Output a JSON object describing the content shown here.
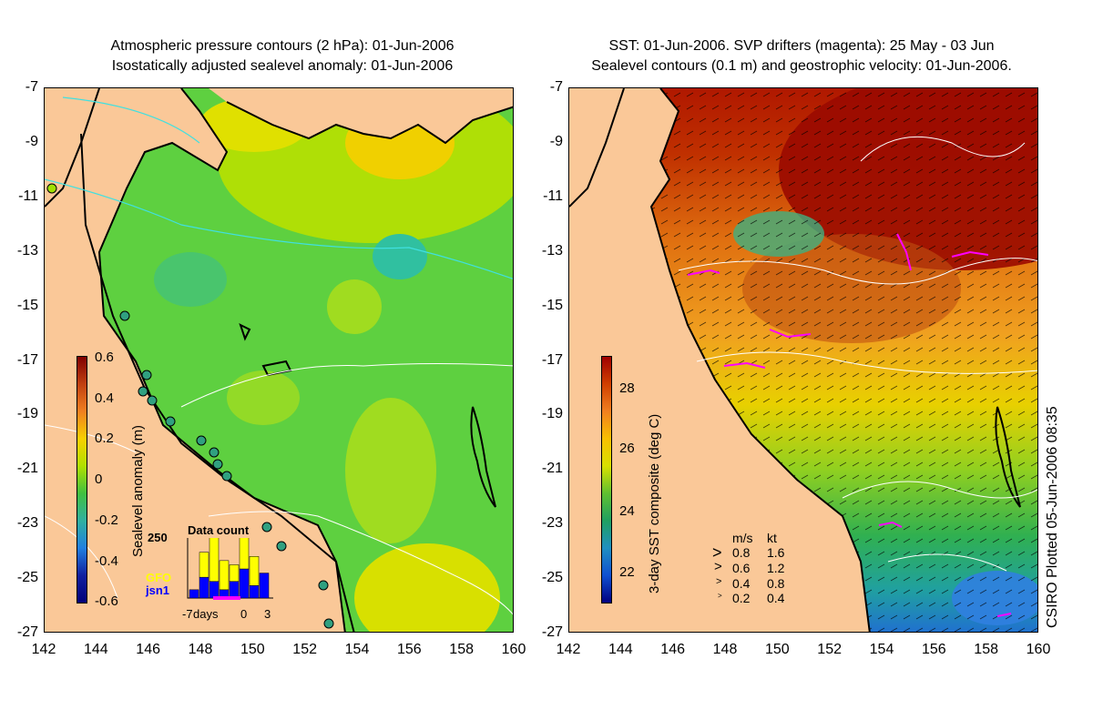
{
  "left_panel": {
    "title_line1": "Atmospheric pressure contours (2 hPa): 01-Jun-2006",
    "title_line2": "Isostatically adjusted sealevel anomaly: 01-Jun-2006",
    "colorbar": {
      "label": "Sealevel anomaly (m)",
      "ticks": [
        "0.6",
        "0.4",
        "0.2",
        "0",
        "-0.2",
        "-0.4",
        "-0.6"
      ],
      "colors": [
        "#800000",
        "#c04010",
        "#f08020",
        "#f8d000",
        "#b0e000",
        "#40c040",
        "#30b0a0",
        "#2080e0",
        "#1020a0",
        "#00007a"
      ]
    },
    "inset": {
      "title": "Data count",
      "ymax_label": "250",
      "series": [
        {
          "name": "GFO",
          "color": "#ffff00"
        },
        {
          "name": "jsn1",
          "color": "#0000ff"
        }
      ],
      "xlabel": "days",
      "xticks": [
        "-7",
        "0",
        "3"
      ],
      "yellow_values": [
        0,
        60,
        120,
        70,
        40,
        110,
        70,
        0
      ],
      "blue_values": [
        20,
        50,
        40,
        20,
        40,
        70,
        30,
        60
      ]
    }
  },
  "right_panel": {
    "title_line1": "SST: 01-Jun-2006. SVP drifters (magenta): 25 May - 03 Jun",
    "title_line2": "Sealevel contours (0.1 m) and geostrophic velocity: 01-Jun-2006.",
    "colorbar": {
      "label": "3-day SST composite (deg C)",
      "ticks": [
        "28",
        "26",
        "24",
        "22"
      ],
      "colors": [
        "#a00000",
        "#d04000",
        "#f08020",
        "#f8c000",
        "#d8e000",
        "#60c030",
        "#20a060",
        "#2090c0",
        "#1050d0",
        "#000080"
      ]
    },
    "speed_legend": {
      "header_ms": "m/s",
      "header_kt": "kt",
      "rows": [
        {
          "ms": "0.8",
          "kt": "1.6"
        },
        {
          "ms": "0.6",
          "kt": "1.2"
        },
        {
          "ms": "0.4",
          "kt": "0.8"
        },
        {
          "ms": "0.2",
          "kt": "0.4"
        }
      ]
    },
    "credit": "CSIRO Plotted 05-Jun-2006 08:35"
  },
  "axes": {
    "y_ticks": [
      "-7",
      "-9",
      "-11",
      "-13",
      "-15",
      "-17",
      "-19",
      "-21",
      "-23",
      "-25",
      "-27"
    ],
    "x_ticks": [
      "142",
      "144",
      "146",
      "148",
      "150",
      "152",
      "154",
      "156",
      "158",
      "160"
    ],
    "lat_range": [
      -27,
      -7
    ],
    "lon_range": [
      142,
      160
    ]
  },
  "colors": {
    "land": "#fac898",
    "coast": "#000000",
    "pressure_contour_cyan": "#40e0e0",
    "contour_white": "#ffffff",
    "drifter_magenta": "#ff00ff"
  }
}
